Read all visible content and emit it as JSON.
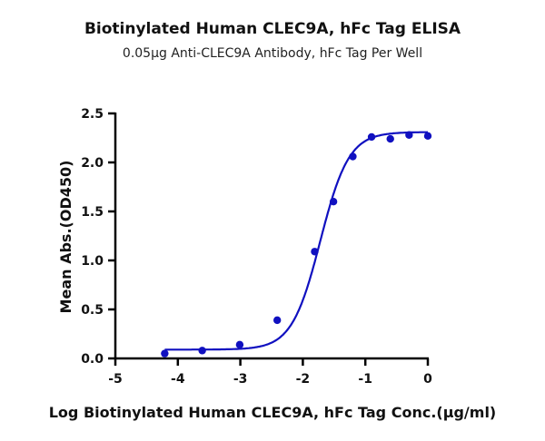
{
  "chart_data": {
    "type": "scatter",
    "title": "Biotinylated Human CLEC9A, hFc Tag ELISA",
    "subtitle": "0.05μg Anti-CLEC9A Antibody, hFc Tag Per Well",
    "xlabel": "Log Biotinylated Human CLEC9A, hFc Tag Conc.(μg/ml)",
    "ylabel": "Mean Abs.(OD450)",
    "xlim": [
      -5,
      0
    ],
    "ylim": [
      0,
      2.5
    ],
    "xticks": [
      "-5",
      "-4",
      "-3",
      "-2",
      "-1",
      "0"
    ],
    "yticks": [
      "0.0",
      "0.5",
      "1.0",
      "1.5",
      "2.0",
      "2.5"
    ],
    "grid": false,
    "color": "#1010c0",
    "points": {
      "x": [
        -4.21,
        -3.61,
        -3.01,
        -2.41,
        -1.81,
        -1.51,
        -1.2,
        -0.9,
        -0.6,
        -0.3,
        0
      ],
      "y": [
        0.05,
        0.08,
        0.14,
        0.39,
        1.09,
        1.6,
        2.06,
        2.26,
        2.24,
        2.28,
        2.27
      ]
    },
    "fit": {
      "model": "4PL",
      "bottom": 0.09,
      "top": 2.31,
      "logEC50": -1.72,
      "hill": 1.9
    }
  }
}
